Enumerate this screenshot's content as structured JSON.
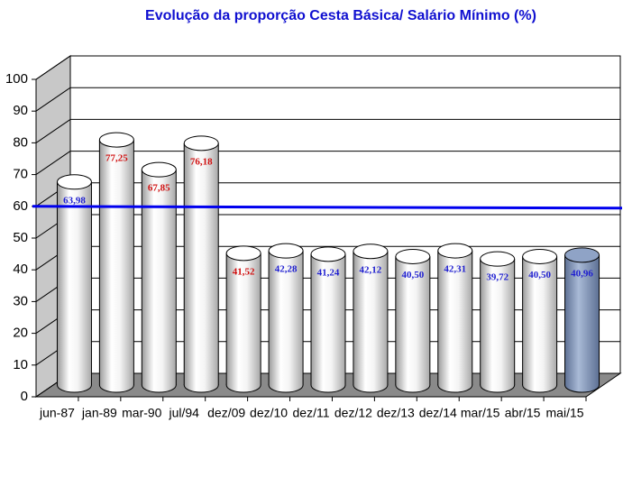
{
  "chart_data": {
    "type": "bar",
    "title": "Evolução da proporção Cesta Básica/ Salário Mínimo (%)",
    "categories": [
      "jun-87",
      "jan-89",
      "mar-90",
      "jul/94",
      "dez/09",
      "dez/10",
      "dez/11",
      "dez/12",
      "dez/13",
      "dez/14",
      "mar/15",
      "abr/15",
      "mai/15"
    ],
    "values": [
      63.98,
      77.25,
      67.85,
      76.18,
      41.52,
      42.28,
      41.24,
      42.12,
      40.5,
      42.31,
      39.72,
      40.5,
      40.96
    ],
    "value_labels": [
      "63,98",
      "77,25",
      "67,85",
      "76,18",
      "41,52",
      "42,28",
      "41,24",
      "42,12",
      "40,50",
      "42,31",
      "39,72",
      "40,50",
      "40,96"
    ],
    "value_label_colors": [
      "#1f1fd0",
      "#d01010",
      "#d01010",
      "#d01010",
      "#d01010",
      "#1f1fd0",
      "#1f1fd0",
      "#1f1fd0",
      "#1f1fd0",
      "#1f1fd0",
      "#1f1fd0",
      "#1f1fd0",
      "#1f1fd0"
    ],
    "colors": [
      "#ffffff",
      "#ffffff",
      "#ffffff",
      "#ffffff",
      "#ffffff",
      "#ffffff",
      "#ffffff",
      "#ffffff",
      "#ffffff",
      "#ffffff",
      "#ffffff",
      "#ffffff",
      "#8fa3c6"
    ],
    "ylim": [
      0,
      100
    ],
    "yticks": [
      0,
      10,
      20,
      30,
      40,
      50,
      60,
      70,
      80,
      90,
      100
    ],
    "grid": true,
    "reference_line": {
      "value": 60,
      "color": "#0000ee"
    }
  }
}
